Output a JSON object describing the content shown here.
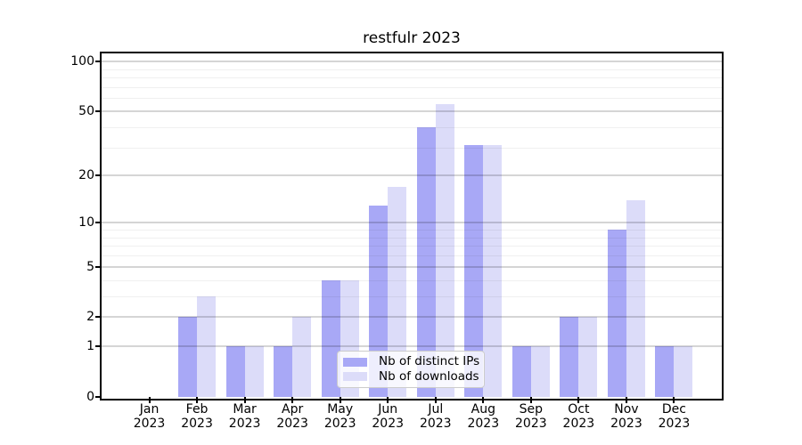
{
  "chart_data": {
    "type": "bar",
    "title": "restfulr 2023",
    "categories": [
      "Jan 2023",
      "Feb 2023",
      "Mar 2023",
      "Apr 2023",
      "May 2023",
      "Jun 2023",
      "Jul 2023",
      "Aug 2023",
      "Sep 2023",
      "Oct 2023",
      "Nov 2023",
      "Dec 2023"
    ],
    "x_tick_line1": [
      "Jan",
      "Feb",
      "Mar",
      "Apr",
      "May",
      "Jun",
      "Jul",
      "Aug",
      "Sep",
      "Oct",
      "Nov",
      "Dec"
    ],
    "x_tick_line2": [
      "2023",
      "2023",
      "2023",
      "2023",
      "2023",
      "2023",
      "2023",
      "2023",
      "2023",
      "2023",
      "2023",
      "2023"
    ],
    "series": [
      {
        "name": "Nb of distinct IPs",
        "color": "#a8a8f6",
        "values": [
          0,
          2,
          1,
          1,
          4,
          13,
          40,
          31,
          1,
          2,
          9,
          1
        ]
      },
      {
        "name": "Nb of downloads",
        "color": "#dcdcf9",
        "values": [
          0,
          3,
          1,
          2,
          4,
          17,
          55,
          31,
          1,
          2,
          14,
          1
        ]
      }
    ],
    "yscale": "log10(value+1)",
    "ylim": [
      0,
      112
    ],
    "y_major_ticks": [
      0,
      1,
      2,
      5,
      10,
      20,
      50,
      100
    ],
    "y_minor_gridlines": [
      3,
      4,
      6,
      7,
      8,
      9,
      30,
      40,
      60,
      70,
      80,
      90
    ],
    "grid": true,
    "legend_position": "lower center, inside plot"
  },
  "legend": {
    "items": [
      {
        "label": "Nb of distinct IPs",
        "swatch_color": "#a8a8f6"
      },
      {
        "label": "Nb of downloads",
        "swatch_color": "#dcdcf9"
      }
    ]
  },
  "colors": {
    "background": "#ffffff",
    "axis": "#000000",
    "major_grid": "#d5d5d5",
    "minor_grid": "#f0f0f0",
    "legend_border": "#cccccc"
  }
}
